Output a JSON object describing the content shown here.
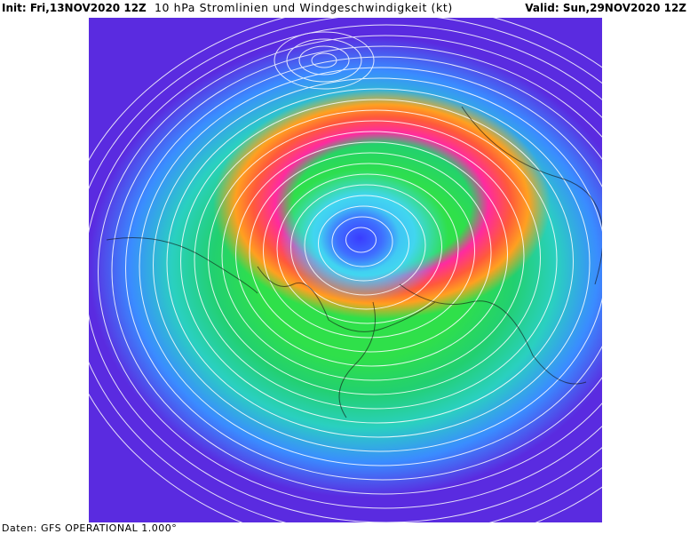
{
  "header": {
    "init": "Init: Fri,13NOV2020 12Z",
    "title": "10 hPa Stromlinien und Windgeschwindigkeit (kt)",
    "valid": "Valid: Sun,29NOV2020 12Z"
  },
  "footer": "Daten: GFS OPERATIONAL 1.000°",
  "colors": {
    "vortex_core": "#3a3cff",
    "jet_max": "#ff2aa0",
    "jet": "#ff8c1e",
    "mid": "#2fe04a",
    "weak": "#5a2be0"
  }
}
